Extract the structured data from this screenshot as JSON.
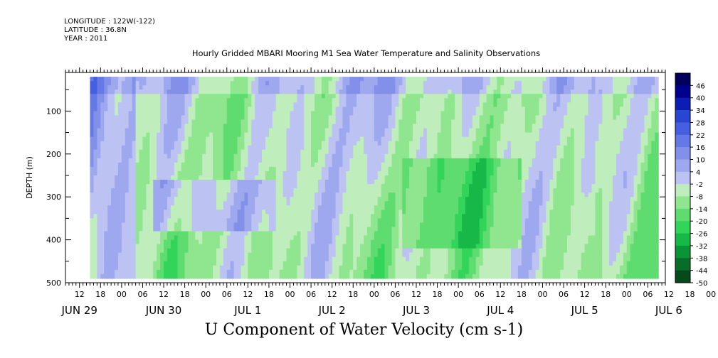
{
  "header": {
    "longitude": "LONGITUDE : 122W(-122)",
    "latitude": "LATITUDE : 36.8N",
    "year": "YEAR : 2011"
  },
  "chart_data": {
    "type": "heatmap",
    "title": "Hourly Gridded MBARI Mooring M1 Sea Water Temperature and Salinity Observations",
    "xlabel": "",
    "ylabel": "DEPTH (m)",
    "footer": "U Component of Water Velocity (cm s-1)",
    "ylim": [
      500,
      10
    ],
    "yticks": [
      100,
      200,
      300,
      400,
      500
    ],
    "y_reversed": true,
    "x_hour_labels": [
      "12",
      "18",
      "00",
      "06",
      "12",
      "18",
      "00",
      "06",
      "12",
      "18",
      "00",
      "06",
      "12",
      "18",
      "00",
      "06",
      "12",
      "18",
      "00",
      "06",
      "12",
      "18",
      "00",
      "06",
      "12",
      "18",
      "00",
      "06",
      "12",
      "18",
      "00",
      "06"
    ],
    "x_date_labels": [
      "JUN 29",
      "JUN 30",
      "JUL 1",
      "JUL 2",
      "JUL 3",
      "JUL 4",
      "JUL 5",
      "JUL 6"
    ],
    "time_range": [
      "2011-06-29 08:00",
      "2011-07-06 11:00"
    ],
    "data_time_range": [
      "2011-06-29 15:00",
      "2011-07-06 09:00"
    ],
    "data_depth_range": [
      20,
      490
    ],
    "colorbar": {
      "levels": [
        -50,
        -44,
        -38,
        -32,
        -26,
        -20,
        -14,
        -8,
        -2,
        4,
        10,
        16,
        22,
        28,
        34,
        40,
        46
      ],
      "tick_labels": [
        "46",
        "40",
        "34",
        "28",
        "22",
        "16",
        "10",
        "4",
        "-2",
        "-8",
        "-14",
        "-20",
        "-26",
        "-32",
        "-38",
        "-44",
        "-50"
      ],
      "colors": [
        "#00005a",
        "#00008c",
        "#0a1eb4",
        "#2846d2",
        "#465ee0",
        "#6478e6",
        "#8290ea",
        "#9ea8ee",
        "#bcc2f2",
        "#bfeebc",
        "#8fe68f",
        "#5fdc70",
        "#33d45a",
        "#18b848",
        "#0a9438",
        "#066e28",
        "#044a1a"
      ]
    },
    "grid": false
  }
}
